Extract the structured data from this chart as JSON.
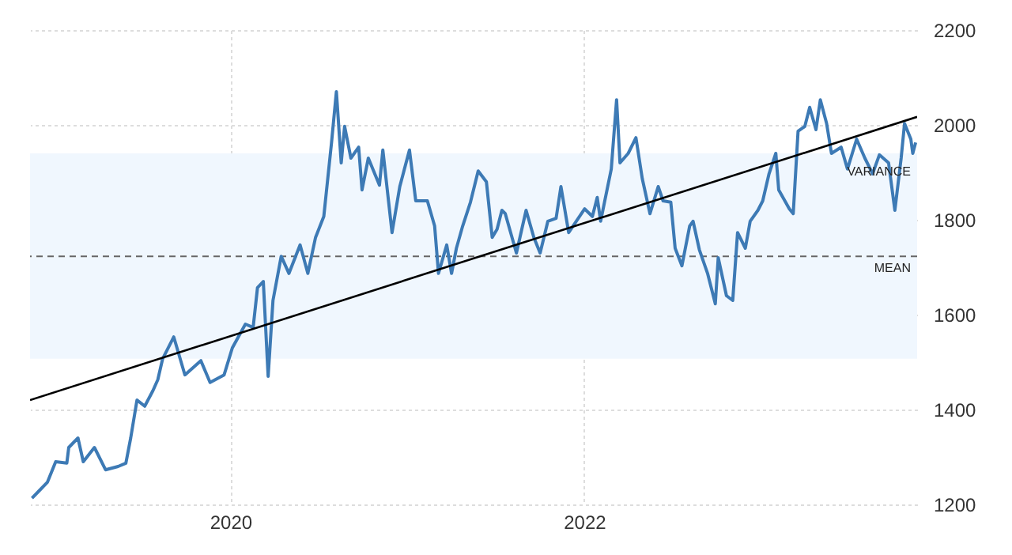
{
  "chart_data": {
    "type": "line",
    "xlim": [
      "2018-11-13",
      "2023-11-20"
    ],
    "ylim": [
      1200,
      2200
    ],
    "xticks": [
      {
        "value": "2020-01-01",
        "label": "2020"
      },
      {
        "value": "2022-01-01",
        "label": "2022"
      }
    ],
    "yticks": [
      1200,
      1400,
      1600,
      1800,
      2000,
      2200
    ],
    "grid": true,
    "series": [
      {
        "color": "#3d7ab5",
        "x": [
          "2018-11-17",
          "2018-12-03",
          "2018-12-19",
          "2019-01-05",
          "2019-01-28",
          "2019-02-01",
          "2019-02-20",
          "2019-03-03",
          "2019-03-26",
          "2019-04-18",
          "2019-05-14",
          "2019-05-30",
          "2019-06-09",
          "2019-06-22",
          "2019-07-08",
          "2019-07-25",
          "2019-08-04",
          "2019-08-14",
          "2019-09-06",
          "2019-09-29",
          "2019-11-01",
          "2019-11-20",
          "2019-12-19",
          "2020-01-05",
          "2020-02-01",
          "2020-02-17",
          "2020-02-26",
          "2020-03-09",
          "2020-03-19",
          "2020-03-29",
          "2020-04-15",
          "2020-05-01",
          "2020-05-24",
          "2020-06-09",
          "2020-06-25",
          "2020-07-12",
          "2020-07-28",
          "2020-08-07",
          "2020-08-17",
          "2020-08-24",
          "2020-09-06",
          "2020-09-22",
          "2020-09-29",
          "2020-10-12",
          "2020-11-04",
          "2020-11-11",
          "2020-11-30",
          "2020-12-16",
          "2021-01-05",
          "2021-01-18",
          "2021-02-11",
          "2021-02-26",
          "2021-03-06",
          "2021-03-23",
          "2021-04-02",
          "2021-04-12",
          "2021-04-25",
          "2021-05-11",
          "2021-05-27",
          "2021-06-13",
          "2021-06-25",
          "2021-07-05",
          "2021-07-15",
          "2021-07-22",
          "2021-08-14",
          "2021-09-03",
          "2021-09-19",
          "2021-10-02",
          "2021-10-18",
          "2021-11-04",
          "2021-11-14",
          "2021-11-30",
          "2022-01-02",
          "2022-01-18",
          "2022-01-28",
          "2022-02-04",
          "2022-02-26",
          "2022-03-09",
          "2022-03-16",
          "2022-04-02",
          "2022-04-18",
          "2022-05-01",
          "2022-05-17",
          "2022-06-03",
          "2022-06-13",
          "2022-06-29",
          "2022-07-08",
          "2022-07-22",
          "2022-08-07",
          "2022-08-14",
          "2022-08-27",
          "2022-09-13",
          "2022-09-29",
          "2022-10-05",
          "2022-10-22",
          "2022-11-04",
          "2022-11-14",
          "2022-11-30",
          "2022-12-10",
          "2022-12-26",
          "2023-01-05",
          "2023-01-18",
          "2023-02-01",
          "2023-02-07",
          "2023-03-01",
          "2023-03-09",
          "2023-03-19",
          "2023-04-02",
          "2023-04-12",
          "2023-04-25",
          "2023-05-04",
          "2023-05-17",
          "2023-05-27",
          "2023-06-16",
          "2023-06-29",
          "2023-07-18",
          "2023-08-04",
          "2023-08-20",
          "2023-09-03",
          "2023-09-22",
          "2023-10-05",
          "2023-10-18",
          "2023-10-25",
          "2023-11-07",
          "2023-11-11",
          "2023-11-17"
        ],
        "values": [
          1213,
          1230,
          1247,
          1290,
          1287,
          1320,
          1340,
          1290,
          1320,
          1273,
          1280,
          1287,
          1340,
          1420,
          1407,
          1440,
          1463,
          1507,
          1553,
          1473,
          1503,
          1457,
          1473,
          1530,
          1580,
          1573,
          1657,
          1670,
          1470,
          1630,
          1723,
          1687,
          1747,
          1687,
          1763,
          1807,
          1963,
          2070,
          1920,
          1997,
          1930,
          1953,
          1863,
          1930,
          1873,
          1947,
          1773,
          1870,
          1947,
          1840,
          1840,
          1787,
          1687,
          1747,
          1687,
          1740,
          1787,
          1837,
          1903,
          1880,
          1763,
          1780,
          1820,
          1813,
          1730,
          1820,
          1763,
          1730,
          1797,
          1803,
          1870,
          1773,
          1823,
          1807,
          1847,
          1797,
          1907,
          2053,
          1920,
          1940,
          1973,
          1887,
          1813,
          1870,
          1840,
          1837,
          1740,
          1703,
          1787,
          1797,
          1737,
          1687,
          1623,
          1720,
          1640,
          1630,
          1773,
          1740,
          1797,
          1820,
          1840,
          1897,
          1940,
          1863,
          1823,
          1813,
          1987,
          1997,
          2037,
          1990,
          2053,
          2003,
          1940,
          1953,
          1907,
          1970,
          1930,
          1897,
          1937,
          1920,
          1820,
          1930,
          2003,
          1970,
          1940,
          1963
        ]
      },
      {
        "type": "line",
        "color": "#000000",
        "x": [
          "2018-11-13",
          "2023-11-20"
        ],
        "values": [
          1420,
          2017
        ]
      }
    ],
    "ref_lines": [
      {
        "axis": "y",
        "value": 1723,
        "label": "MEAN",
        "color": "#666666",
        "line_style": "dashed"
      }
    ],
    "bands": [
      {
        "axis": "y",
        "from": 1507,
        "to": 1940,
        "label": "VARIANCE",
        "color": "#f0f7fe"
      }
    ]
  }
}
